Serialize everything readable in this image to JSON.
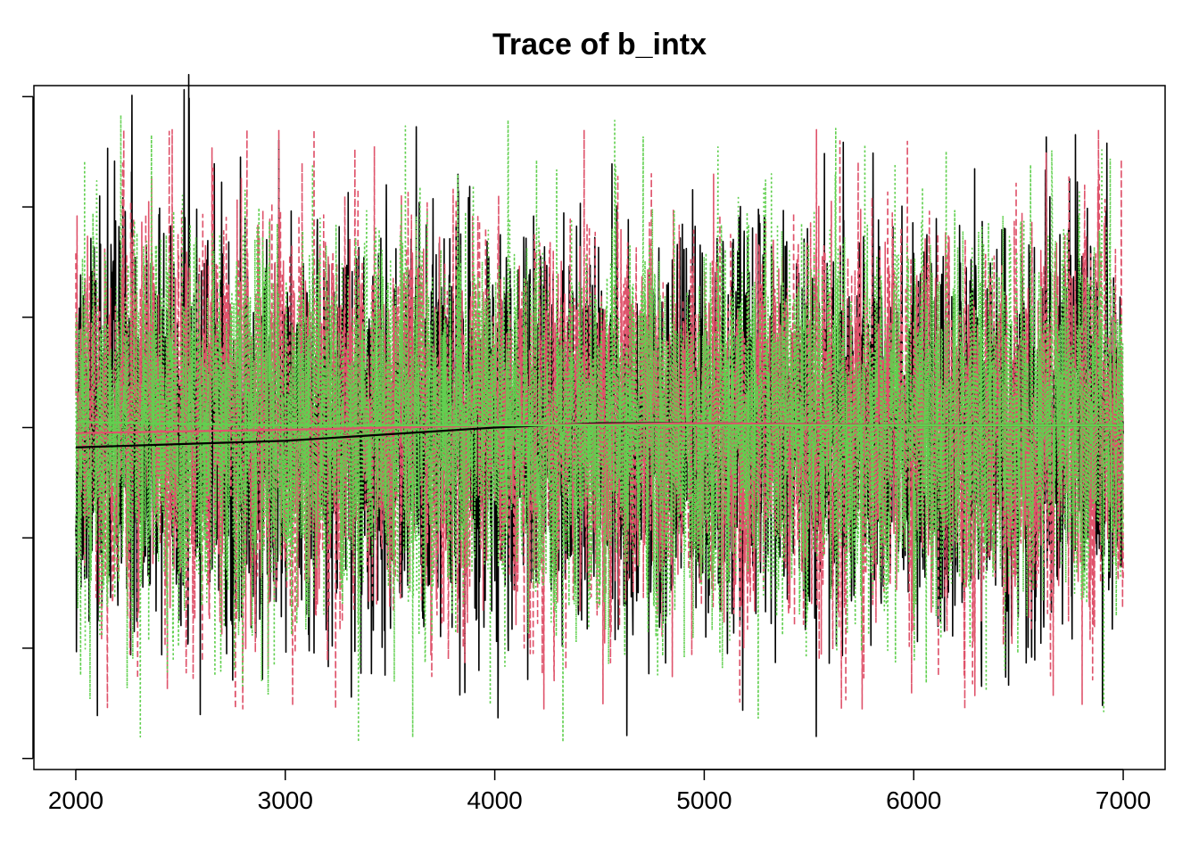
{
  "chart_data": {
    "type": "line",
    "title": "Trace of b_intx",
    "xlabel": "",
    "ylabel": "",
    "xlim": [
      1800,
      7200
    ],
    "ylim": [
      -3.1,
      3.1
    ],
    "x_ticks": [
      2000,
      3000,
      4000,
      5000,
      6000,
      7000
    ],
    "x_tick_labels": [
      "2000",
      "3000",
      "4000",
      "5000",
      "6000",
      "7000"
    ],
    "y_ticks": [
      -3,
      -2,
      -1,
      0,
      1,
      2,
      3
    ],
    "y_tick_labels": [
      "",
      "",
      "",
      "",
      "",
      "",
      ""
    ],
    "grid": false,
    "legend": "none",
    "n_iterations": 5000,
    "x_start": 2000,
    "x_end": 7000,
    "series": [
      {
        "color": "#000000",
        "dash": "solid",
        "spread": 0.85,
        "min": -2.8,
        "max": 3.2,
        "seed": 11,
        "smooth_x": [
          2000,
          3000,
          4000,
          4500,
          5000,
          6000,
          7000
        ],
        "smooth_y": [
          -0.18,
          -0.12,
          0.0,
          0.04,
          0.04,
          0.02,
          0.02
        ]
      },
      {
        "color": "#DF536B",
        "dash": "dashed",
        "spread": 0.85,
        "min": -2.55,
        "max": 2.7,
        "seed": 23,
        "smooth_x": [
          2000,
          3000,
          4000,
          5000,
          6000,
          7000
        ],
        "smooth_y": [
          -0.05,
          -0.02,
          0.02,
          0.04,
          0.02,
          0.02
        ]
      },
      {
        "color": "#61D04F",
        "dash": "dotted",
        "spread": 0.85,
        "min": -2.85,
        "max": 3.1,
        "seed": 37,
        "smooth_x": [
          2000,
          3000,
          4000,
          5000,
          6000,
          7000
        ],
        "smooth_y": [
          0.05,
          0.02,
          0.02,
          0.02,
          0.02,
          0.02
        ]
      }
    ],
    "smooth_line_color": "#000000"
  }
}
